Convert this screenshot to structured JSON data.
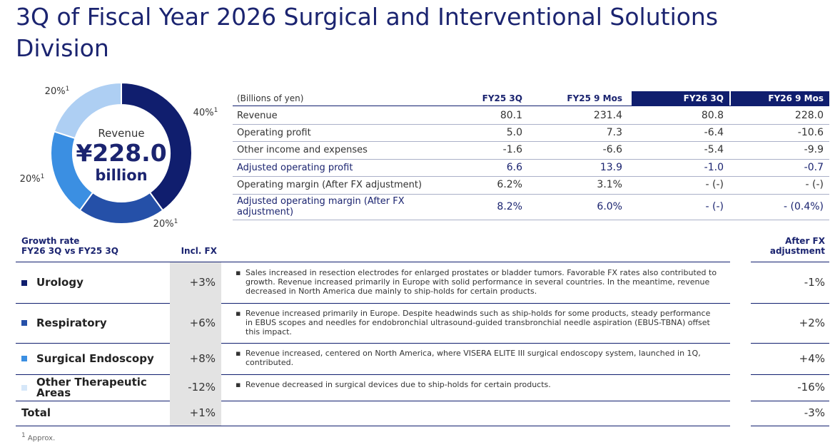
{
  "header": {
    "title": "3Q of Fiscal Year 2026 Surgical and Interventional Solutions Division"
  },
  "chart_data": {
    "type": "pie",
    "values": [
      40,
      20,
      20,
      20
    ],
    "value_labels": [
      "40%",
      "20%",
      "20%",
      "20%"
    ],
    "label_note": "1",
    "colors": [
      "#101e6e",
      "#2550a8",
      "#3b8fe2",
      "#aecff3"
    ],
    "center_label": "Revenue",
    "center_value": "¥228.0",
    "center_unit": "billion"
  },
  "financials": {
    "columns": [
      "(Billions of yen)",
      "FY25 3Q",
      "FY25 9 Mos",
      "FY26 3Q",
      "FY26 9 Mos"
    ],
    "rows": [
      [
        "Revenue",
        "80.1",
        "231.4",
        "80.8",
        "228.0"
      ],
      [
        "Operating profit",
        "5.0",
        "7.3",
        "-6.4",
        "-10.6"
      ],
      [
        "Other income and expenses",
        "-1.6",
        "-6.6",
        "-5.4",
        "-9.9"
      ],
      [
        "Adjusted operating profit",
        "6.6",
        "13.9",
        "-1.0",
        "-0.7"
      ],
      [
        "Operating margin (After FX adjustment)",
        "6.2%",
        "3.1%",
        "- (-)",
        "- (-)"
      ],
      [
        "Adjusted operating margin (After FX adjustment)",
        "8.2%",
        "6.0%",
        "- (-)",
        "- (0.4%)"
      ]
    ]
  },
  "growth": {
    "header": {
      "title": "Growth rate",
      "subtitle": "FY26 3Q vs FY25 3Q",
      "incl_fx": "Incl. FX",
      "after_fx": "After FX adjustment"
    },
    "rows": [
      {
        "name": "Urology",
        "color": "#101e6e",
        "incl_fx": "+3%",
        "comment": "Sales increased in resection electrodes for enlarged prostates or bladder tumors. Favorable FX rates also contributed to growth. Revenue increased primarily in Europe with solid performance in several countries. In the meantime, revenue decreased in North America due mainly to ship-holds for certain products.",
        "after_fx": "-1%"
      },
      {
        "name": "Respiratory",
        "color": "#2550a8",
        "incl_fx": "+6%",
        "comment": "Revenue increased primarily in Europe. Despite headwinds such as ship-holds for some products, steady performance in EBUS scopes and needles for endobronchial ultrasound-guided transbronchial needle aspiration (EBUS-TBNA) offset this impact.",
        "after_fx": "+2%"
      },
      {
        "name": "Surgical Endoscopy",
        "color": "#3b8fe2",
        "incl_fx": "+8%",
        "comment": "Revenue increased, centered on North America, where VISERA ELITE III surgical endoscopy system, launched in 1Q, contributed.",
        "after_fx": "+4%"
      },
      {
        "name": "Other Therapeutic Areas",
        "color": "#d6e7f9",
        "incl_fx": "-12%",
        "comment": "Revenue decreased in surgical devices due to ship-holds for certain products.",
        "after_fx": "-16%"
      },
      {
        "name": "Total",
        "incl_fx": "+1%",
        "after_fx": "-3%"
      }
    ]
  },
  "footnote": {
    "mark": "1",
    "text": "Approx."
  }
}
